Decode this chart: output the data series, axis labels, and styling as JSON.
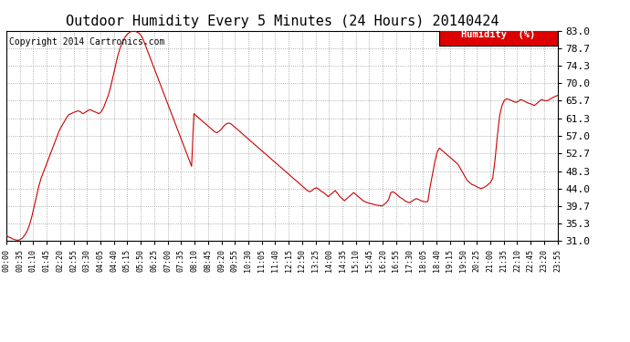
{
  "title": "Outdoor Humidity Every 5 Minutes (24 Hours) 20140424",
  "copyright": "Copyright 2014 Cartronics.com",
  "legend_label": "Humidity  (%)",
  "legend_bg": "#dd0000",
  "legend_text_color": "#ffffff",
  "line_color": "#cc0000",
  "bg_color": "#ffffff",
  "grid_color": "#aaaaaa",
  "grid_style": ":",
  "title_fontsize": 11,
  "ylabel_fontsize": 8,
  "xlabel_fontsize": 6,
  "copyright_fontsize": 7,
  "ylim": [
    31.0,
    83.0
  ],
  "yticks": [
    31.0,
    35.3,
    39.7,
    44.0,
    48.3,
    52.7,
    57.0,
    61.3,
    65.7,
    70.0,
    74.3,
    78.7,
    83.0
  ],
  "humidity_data": [
    32.5,
    32.0,
    31.8,
    31.5,
    31.3,
    31.2,
    31.4,
    31.8,
    32.5,
    33.5,
    35.0,
    37.0,
    39.5,
    42.0,
    44.5,
    46.5,
    48.0,
    49.5,
    51.0,
    52.5,
    54.0,
    55.5,
    57.0,
    58.5,
    59.5,
    60.5,
    61.5,
    62.3,
    62.5,
    62.8,
    63.0,
    63.2,
    63.0,
    62.5,
    62.8,
    63.2,
    63.5,
    63.3,
    63.0,
    62.8,
    62.5,
    63.0,
    64.0,
    65.5,
    67.0,
    69.0,
    71.5,
    74.0,
    76.5,
    78.5,
    80.0,
    81.2,
    82.0,
    82.5,
    82.9,
    83.0,
    82.8,
    82.5,
    82.0,
    81.0,
    79.5,
    78.0,
    76.5,
    75.0,
    73.5,
    72.0,
    70.5,
    69.0,
    67.5,
    66.0,
    64.5,
    63.0,
    61.5,
    60.0,
    58.5,
    57.0,
    55.5,
    54.0,
    52.5,
    51.0,
    49.5,
    62.5,
    62.0,
    61.5,
    61.0,
    60.5,
    60.0,
    59.5,
    59.0,
    58.5,
    58.0,
    57.8,
    58.2,
    58.8,
    59.5,
    60.0,
    60.2,
    60.0,
    59.5,
    59.0,
    58.5,
    58.0,
    57.5,
    57.0,
    56.5,
    56.0,
    55.5,
    55.0,
    54.5,
    54.0,
    53.5,
    53.0,
    52.5,
    52.0,
    51.5,
    51.0,
    50.5,
    50.0,
    49.5,
    49.0,
    48.5,
    48.0,
    47.5,
    47.0,
    46.5,
    46.0,
    45.5,
    45.0,
    44.5,
    44.0,
    43.5,
    43.2,
    43.5,
    44.0,
    44.2,
    43.8,
    43.3,
    43.0,
    42.5,
    42.0,
    42.5,
    43.0,
    43.5,
    42.8,
    42.0,
    41.5,
    41.0,
    41.5,
    42.0,
    42.5,
    43.0,
    42.5,
    42.0,
    41.5,
    41.0,
    40.7,
    40.5,
    40.3,
    40.2,
    40.0,
    39.9,
    39.8,
    39.7,
    40.0,
    40.5,
    41.2,
    43.0,
    43.2,
    42.8,
    42.3,
    41.8,
    41.5,
    41.0,
    40.7,
    40.5,
    40.8,
    41.2,
    41.5,
    41.3,
    41.0,
    40.8,
    40.7,
    40.8,
    44.5,
    47.5,
    50.5,
    53.0,
    54.0,
    53.5,
    53.0,
    52.5,
    52.0,
    51.5,
    51.0,
    50.5,
    50.0,
    49.0,
    48.0,
    47.0,
    46.0,
    45.5,
    45.0,
    44.8,
    44.5,
    44.2,
    44.0,
    44.2,
    44.5,
    45.0,
    45.5,
    46.5,
    51.0,
    57.0,
    62.0,
    64.5,
    65.8,
    66.2,
    66.0,
    65.8,
    65.5,
    65.3,
    65.5,
    66.0,
    65.8,
    65.5,
    65.2,
    65.0,
    64.8,
    64.5,
    65.0,
    65.5,
    66.0,
    65.8,
    65.7,
    65.8,
    66.2,
    66.5,
    66.8,
    67.0
  ],
  "xtick_labels": [
    "00:00",
    "00:35",
    "01:10",
    "01:45",
    "02:20",
    "02:55",
    "03:30",
    "04:05",
    "04:40",
    "05:15",
    "05:50",
    "06:25",
    "07:00",
    "07:35",
    "08:10",
    "08:45",
    "09:20",
    "09:55",
    "10:30",
    "11:05",
    "11:40",
    "12:15",
    "12:50",
    "13:25",
    "14:00",
    "14:35",
    "15:10",
    "15:45",
    "16:20",
    "16:55",
    "17:30",
    "18:05",
    "18:40",
    "19:15",
    "19:50",
    "20:25",
    "21:00",
    "21:35",
    "22:10",
    "22:45",
    "23:20",
    "23:55"
  ]
}
